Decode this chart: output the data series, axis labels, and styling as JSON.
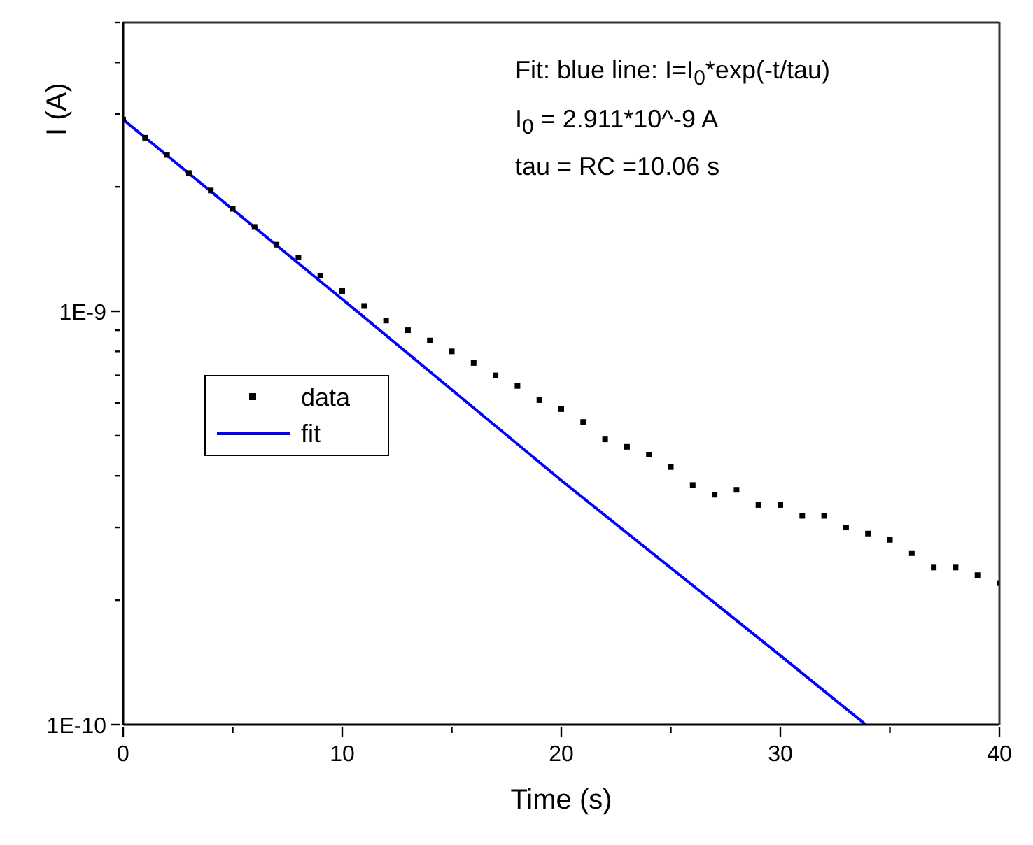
{
  "chart_data": {
    "type": "scatter",
    "xlabel": "Time (s)",
    "ylabel": "I (A)",
    "log": "y",
    "marker": "square",
    "legend": "left",
    "grid": false,
    "annotations": [
      "Fit: blue line: I=I$_{0}$*exp(-t/tau)",
      "I$_{0}$ = 2.911*10^-9 A",
      "tau = RC =10.06 s"
    ],
    "xlim": [
      0,
      40
    ],
    "xticks": [
      0,
      {
        "value": 5,
        "label": null
      },
      10,
      {
        "value": 15,
        "label": null
      },
      20,
      {
        "value": 25,
        "label": null
      },
      30,
      {
        "value": 35,
        "label": null
      },
      40
    ],
    "ylim": [
      1e-10,
      5e-09
    ],
    "yticks": [
      {
        "value": 1e-10,
        "label": "1E-10"
      },
      {
        "value": 2e-10,
        "label": null
      },
      {
        "value": 3e-10,
        "label": null
      },
      {
        "value": 4e-10,
        "label": null
      },
      {
        "value": 5e-10,
        "label": null
      },
      {
        "value": 6e-10,
        "label": null
      },
      {
        "value": 7e-10,
        "label": null
      },
      {
        "value": 8e-10,
        "label": null
      },
      {
        "value": 9e-10,
        "label": null
      },
      {
        "value": 1e-09,
        "label": "1E-9"
      },
      {
        "value": 2e-09,
        "label": null
      },
      {
        "value": 3e-09,
        "label": null
      },
      {
        "value": 4e-09,
        "label": null
      },
      {
        "value": 5e-09,
        "label": null
      }
    ],
    "series": [
      {
        "name": "data",
        "color": "#000000",
        "x": [
          0,
          1,
          2,
          3,
          4,
          5,
          6,
          7,
          8,
          9,
          10,
          11,
          12,
          13,
          14,
          15,
          16,
          17,
          18,
          19,
          20,
          21,
          22,
          23,
          24,
          25,
          26,
          27,
          28,
          29,
          30,
          31,
          32,
          33,
          34,
          35,
          36,
          37,
          38,
          39,
          40
        ],
        "values": [
          2.91e-09,
          2.63e-09,
          2.39e-09,
          2.16e-09,
          1.96e-09,
          1.77e-09,
          1.6e-09,
          1.45e-09,
          1.35e-09,
          1.22e-09,
          1.12e-09,
          1.03e-09,
          9.5e-10,
          9e-10,
          8.5e-10,
          8e-10,
          7.5e-10,
          7e-10,
          6.6e-10,
          6.1e-10,
          5.8e-10,
          5.4e-10,
          4.9e-10,
          4.7e-10,
          4.5e-10,
          4.2e-10,
          3.8e-10,
          3.6e-10,
          3.7e-10,
          3.4e-10,
          3.4e-10,
          3.2e-10,
          3.2e-10,
          3e-10,
          2.9e-10,
          2.8e-10,
          2.6e-10,
          2.4e-10,
          2.4e-10,
          2.3e-10,
          2.2e-10
        ]
      },
      {
        "name": "fit",
        "type": "line",
        "color": "#0000ff",
        "marker": "none",
        "x": [
          0,
          10,
          20,
          30,
          33.9
        ],
        "values": [
          2.911e-09,
          1.07e-09,
          3.9e-10,
          1.47e-10,
          1e-10
        ]
      }
    ]
  }
}
